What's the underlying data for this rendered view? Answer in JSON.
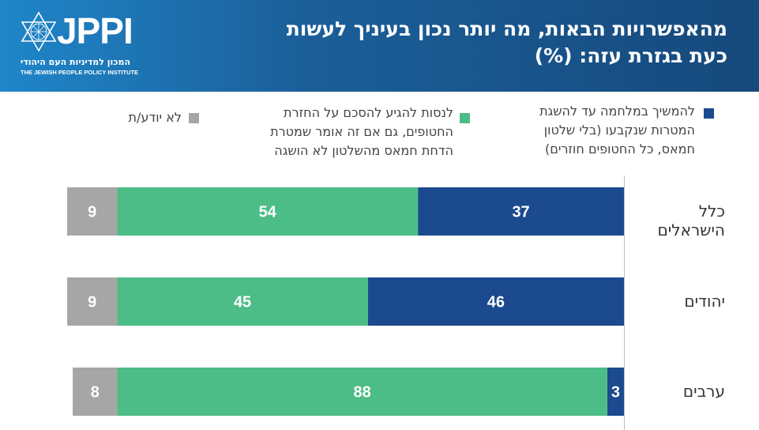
{
  "header": {
    "logo_text": "JPPI",
    "logo_hebrew": "המכון למדיניות העם היהודי",
    "logo_english": "THE JEWISH PEOPLE POLICY INSTITUTE",
    "title": "מהאפשרויות הבאות, מה יותר נכון בעיניך לעשות כעת בגזרת עזה: (%)"
  },
  "chart_data": {
    "type": "bar",
    "orientation": "horizontal-stacked",
    "categories": [
      "כלל הישראלים",
      "יהודים",
      "ערבים"
    ],
    "series": [
      {
        "name": "להמשיך במלחמה עד להשגת המטרות שנקבעו (בלי שלטון חמאס, כל החטופים חוזרים)",
        "values": [
          37,
          46,
          3
        ],
        "color": "#1b4a8e"
      },
      {
        "name": "לנסות להגיע להסכם על החזרת החטופים, גם אם זה אומר שמטרת הדחת חמאס מהשלטון לא הושגה",
        "values": [
          54,
          45,
          88
        ],
        "color": "#4dbd87"
      },
      {
        "name": "לא יודע/ת",
        "values": [
          9,
          9,
          8
        ],
        "color": "#a6a6a6"
      }
    ],
    "data_labels": true,
    "legend_position": "top"
  }
}
